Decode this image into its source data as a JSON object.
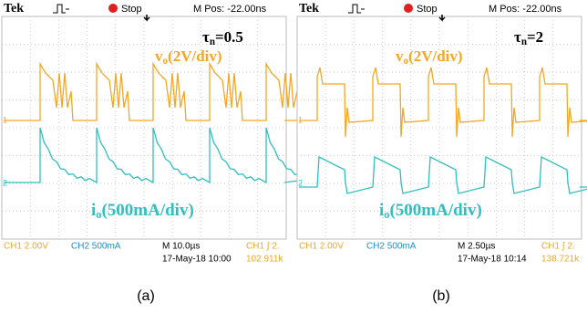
{
  "panels": [
    {
      "header": {
        "brand": "Tek",
        "state": "Stop",
        "position": "M Pos: -22.00ns"
      },
      "annotation": {
        "symbol": "τ",
        "sub": "n",
        "rest": "=0.5"
      },
      "voltage_label": {
        "main": "v",
        "sub": "o",
        "rest": "(2V/div)"
      },
      "current_label": {
        "main": "i",
        "sub": "o",
        "rest": "(500mA/div)"
      },
      "markers": {
        "ch1": "1",
        "ch2": "2"
      },
      "footer": {
        "ch1": "CH1  2.00V",
        "ch2": "CH2  500mA",
        "timebase": "M 10.0µs",
        "trigger": "CH1 ∫ 2.",
        "date": "17-May-18 10:00",
        "frequency": "102.911k"
      },
      "caption": "(a)"
    },
    {
      "header": {
        "brand": "Tek",
        "state": "Stop",
        "position": "M Pos: -22.00ns"
      },
      "annotation": {
        "symbol": "τ",
        "sub": "n",
        "rest": "=2"
      },
      "voltage_label": {
        "main": "v",
        "sub": "o",
        "rest": "(2V/div)"
      },
      "current_label": {
        "main": "i",
        "sub": "o",
        "rest": "(500mA/div)"
      },
      "markers": {
        "ch1": "1",
        "ch2": "2"
      },
      "footer": {
        "ch1": "CH1  2.00V",
        "ch2": "CH2  500mA",
        "timebase": "M 2.50µs",
        "trigger": "CH1 ∫ 2.",
        "date": "17-May-18 10:14",
        "frequency": "138.721k"
      },
      "caption": "(b)"
    }
  ]
}
